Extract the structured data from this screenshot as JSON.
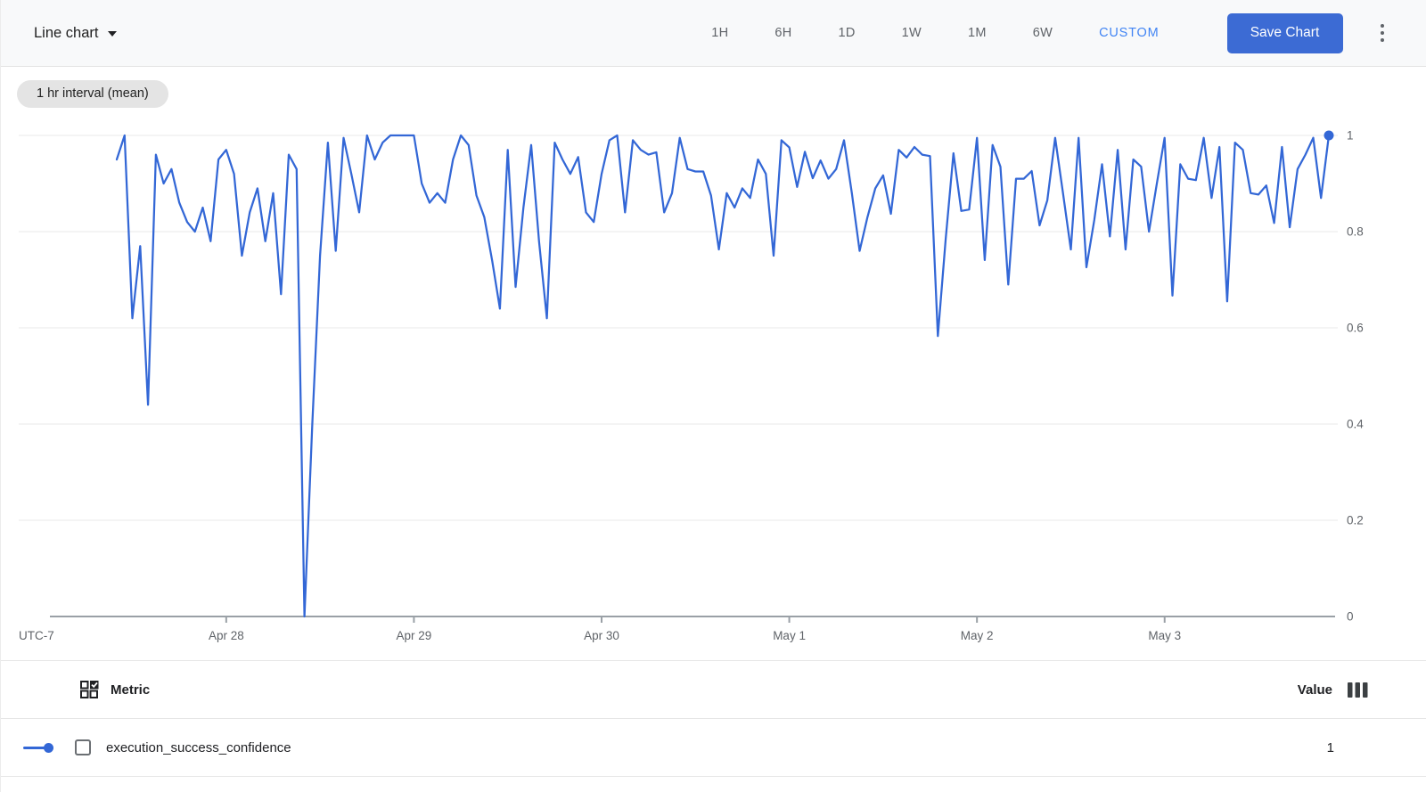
{
  "header": {
    "chart_type_label": "Line chart",
    "time_ranges": [
      "1H",
      "6H",
      "1D",
      "1W",
      "1M",
      "6W"
    ],
    "custom_label": "CUSTOM",
    "save_button_label": "Save Chart"
  },
  "toolbar": {
    "interval_badge": "1 hr interval (mean)"
  },
  "chart_data": {
    "type": "line",
    "title": "",
    "xlabel": "",
    "ylabel": "",
    "ylim": [
      0,
      1
    ],
    "grid": true,
    "legend_position": "bottom-table",
    "utc_label": "UTC-7",
    "x_interval_hours": 1,
    "x_ticks": [
      {
        "label": "Apr 28",
        "hour": 14
      },
      {
        "label": "Apr 29",
        "hour": 38
      },
      {
        "label": "Apr 30",
        "hour": 62
      },
      {
        "label": "May 1",
        "hour": 86
      },
      {
        "label": "May 2",
        "hour": 110
      },
      {
        "label": "May 3",
        "hour": 134
      }
    ],
    "y_ticks": [
      {
        "label": "1",
        "value": 1
      },
      {
        "label": "0.8",
        "value": 0.8
      },
      {
        "label": "0.6",
        "value": 0.6
      },
      {
        "label": "0.4",
        "value": 0.4
      },
      {
        "label": "0.2",
        "value": 0.2
      },
      {
        "label": "0",
        "value": 0
      }
    ],
    "end_point_marker": true,
    "series": [
      {
        "name": "execution_success_confidence",
        "color": "#3367d6",
        "values": [
          0.95,
          1.0,
          0.62,
          0.77,
          0.44,
          0.96,
          0.9,
          0.93,
          0.86,
          0.82,
          0.8,
          0.85,
          0.78,
          0.95,
          0.97,
          0.92,
          0.75,
          0.84,
          0.89,
          0.78,
          0.88,
          0.67,
          0.96,
          0.93,
          0.0,
          0.4,
          0.75,
          0.985,
          0.76,
          0.995,
          0.92,
          0.84,
          1.0,
          0.95,
          0.985,
          1.0,
          1.0,
          1.0,
          1.0,
          0.9,
          0.86,
          0.88,
          0.86,
          0.95,
          1.0,
          0.98,
          0.875,
          0.83,
          0.74,
          0.64,
          0.97,
          0.685,
          0.85,
          0.98,
          0.78,
          0.62,
          0.985,
          0.95,
          0.92,
          0.955,
          0.84,
          0.82,
          0.92,
          0.99,
          1.0,
          0.84,
          0.99,
          0.97,
          0.96,
          0.965,
          0.84,
          0.88,
          0.995,
          0.93,
          0.925,
          0.925,
          0.875,
          0.763,
          0.88,
          0.85,
          0.89,
          0.87,
          0.95,
          0.92,
          0.75,
          0.99,
          0.975,
          0.893,
          0.966,
          0.911,
          0.948,
          0.91,
          0.93,
          0.99,
          0.88,
          0.76,
          0.83,
          0.89,
          0.917,
          0.837,
          0.97,
          0.954,
          0.976,
          0.96,
          0.957,
          0.583,
          0.785,
          0.963,
          0.843,
          0.846,
          0.995,
          0.741,
          0.98,
          0.935,
          0.69,
          0.91,
          0.91,
          0.926,
          0.813,
          0.865,
          0.995,
          0.88,
          0.763,
          0.995,
          0.726,
          0.824,
          0.94,
          0.79,
          0.97,
          0.763,
          0.95,
          0.935,
          0.8,
          0.9,
          0.995,
          0.667,
          0.94,
          0.91,
          0.907,
          0.995,
          0.87,
          0.976,
          0.655,
          0.985,
          0.97,
          0.88,
          0.877,
          0.896,
          0.818,
          0.976,
          0.809,
          0.93,
          0.96,
          0.995,
          0.87,
          1.0
        ]
      }
    ]
  },
  "legend_table": {
    "metric_header": "Metric",
    "value_header": "Value",
    "rows": [
      {
        "metric": "execution_success_confidence",
        "value": "1",
        "color": "#3367d6",
        "checked": false
      }
    ]
  },
  "colors": {
    "line": "#3367d6",
    "custom_link": "#4285f4",
    "save_button": "#3c6bd4",
    "axis": "#9aa0a6",
    "gridline": "#e9e9e9",
    "muted_text": "#5f6368",
    "header_bg": "#f8f9fa",
    "pill_bg": "#e4e4e4"
  }
}
